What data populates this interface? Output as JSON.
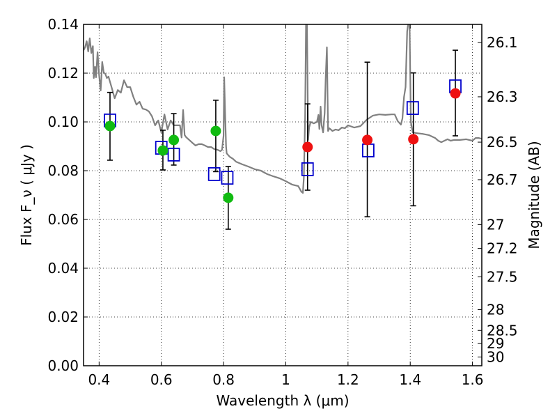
{
  "chart_data": {
    "type": "scatter",
    "xlabel": "Wavelength  λ (μm)",
    "ylabel": "Flux  F_ν  ( μJy )",
    "ylabel_right": "Magnitude (AB)",
    "xlim": [
      0.35,
      1.63
    ],
    "ylim": [
      0.0,
      0.14
    ],
    "grid": true,
    "x_ticks": [
      0.4,
      0.6,
      0.8,
      1.0,
      1.2,
      1.4,
      1.6
    ],
    "x_tick_labels": [
      "0.4",
      "0.6",
      "0.8",
      "1",
      "1.2",
      "1.4",
      "1.6"
    ],
    "y_ticks": [
      0.0,
      0.02,
      0.04,
      0.06,
      0.08,
      0.1,
      0.12,
      0.14
    ],
    "y_tick_labels": [
      "0.00",
      "0.02",
      "0.04",
      "0.06",
      "0.08",
      "0.10",
      "0.12",
      "0.14"
    ],
    "right_axis_ticks": [
      {
        "label": "26.1",
        "flux": 0.1326
      },
      {
        "label": "26.3",
        "flux": 0.1103
      },
      {
        "label": "26.5",
        "flux": 0.0917
      },
      {
        "label": "26.7",
        "flux": 0.0763
      },
      {
        "label": "27",
        "flux": 0.0579
      },
      {
        "label": "27.2",
        "flux": 0.0481
      },
      {
        "label": "27.5",
        "flux": 0.0365
      },
      {
        "label": "28",
        "flux": 0.023
      },
      {
        "label": "28.5",
        "flux": 0.0145
      },
      {
        "label": "29",
        "flux": 0.0091
      },
      {
        "label": "30",
        "flux": 0.0036
      }
    ],
    "series": [
      {
        "kind": "errorbars",
        "color": "#000000",
        "points": [
          {
            "x": 0.435,
            "low": 0.0843,
            "high": 0.1121
          },
          {
            "x": 0.605,
            "low": 0.0803,
            "high": 0.0966
          },
          {
            "x": 0.64,
            "low": 0.0823,
            "high": 0.1034
          },
          {
            "x": 0.775,
            "low": 0.0796,
            "high": 0.1089
          },
          {
            "x": 0.815,
            "low": 0.056,
            "high": 0.0817
          },
          {
            "x": 1.07,
            "low": 0.072,
            "high": 0.1074
          },
          {
            "x": 1.262,
            "low": 0.0611,
            "high": 0.1245
          },
          {
            "x": 1.41,
            "low": 0.0656,
            "high": 0.1201
          },
          {
            "x": 1.545,
            "low": 0.0943,
            "high": 0.1294
          }
        ]
      },
      {
        "kind": "open-squares",
        "color": "#0000cc",
        "points": [
          {
            "x": 0.435,
            "y": 0.1006
          },
          {
            "x": 0.6,
            "y": 0.0894
          },
          {
            "x": 0.64,
            "y": 0.0866
          },
          {
            "x": 0.77,
            "y": 0.0786
          },
          {
            "x": 0.812,
            "y": 0.0771
          },
          {
            "x": 1.07,
            "y": 0.0806
          },
          {
            "x": 1.265,
            "y": 0.0883
          },
          {
            "x": 1.408,
            "y": 0.1057
          },
          {
            "x": 1.545,
            "y": 0.1146
          }
        ]
      },
      {
        "kind": "green-circles",
        "color": "#11bb11",
        "points": [
          {
            "x": 0.435,
            "y": 0.0983
          },
          {
            "x": 0.605,
            "y": 0.0883
          },
          {
            "x": 0.64,
            "y": 0.0926
          },
          {
            "x": 0.775,
            "y": 0.0963
          },
          {
            "x": 0.815,
            "y": 0.0689
          }
        ]
      },
      {
        "kind": "red-circles",
        "color": "#ee1111",
        "points": [
          {
            "x": 1.07,
            "y": 0.0897
          },
          {
            "x": 1.262,
            "y": 0.0926
          },
          {
            "x": 1.41,
            "y": 0.0929
          },
          {
            "x": 1.545,
            "y": 0.1117
          }
        ]
      },
      {
        "kind": "model-spectrum",
        "color": "#808080",
        "points": [
          [
            0.35,
            0.1294
          ],
          [
            0.355,
            0.1306
          ],
          [
            0.36,
            0.1331
          ],
          [
            0.365,
            0.1289
          ],
          [
            0.37,
            0.1343
          ],
          [
            0.375,
            0.1283
          ],
          [
            0.38,
            0.1311
          ],
          [
            0.383,
            0.118
          ],
          [
            0.387,
            0.1226
          ],
          [
            0.39,
            0.1183
          ],
          [
            0.395,
            0.1286
          ],
          [
            0.4,
            0.1194
          ],
          [
            0.405,
            0.1129
          ],
          [
            0.41,
            0.1246
          ],
          [
            0.415,
            0.1203
          ],
          [
            0.42,
            0.1197
          ],
          [
            0.425,
            0.118
          ],
          [
            0.43,
            0.1186
          ],
          [
            0.44,
            0.1143
          ],
          [
            0.45,
            0.1097
          ],
          [
            0.46,
            0.1131
          ],
          [
            0.47,
            0.112
          ],
          [
            0.48,
            0.1171
          ],
          [
            0.49,
            0.1143
          ],
          [
            0.5,
            0.1143
          ],
          [
            0.51,
            0.1103
          ],
          [
            0.52,
            0.1071
          ],
          [
            0.53,
            0.1083
          ],
          [
            0.54,
            0.1054
          ],
          [
            0.55,
            0.1051
          ],
          [
            0.56,
            0.1043
          ],
          [
            0.57,
            0.1023
          ],
          [
            0.58,
            0.0986
          ],
          [
            0.59,
            0.1006
          ],
          [
            0.6,
            0.0957
          ],
          [
            0.61,
            0.1031
          ],
          [
            0.62,
            0.0969
          ],
          [
            0.63,
            0.1006
          ],
          [
            0.64,
            0.0986
          ],
          [
            0.65,
            0.0986
          ],
          [
            0.66,
            0.0986
          ],
          [
            0.665,
            0.0936
          ],
          [
            0.67,
            0.1049
          ],
          [
            0.675,
            0.0946
          ],
          [
            0.68,
            0.0937
          ],
          [
            0.7,
            0.0914
          ],
          [
            0.71,
            0.0903
          ],
          [
            0.72,
            0.0909
          ],
          [
            0.73,
            0.0909
          ],
          [
            0.74,
            0.0903
          ],
          [
            0.75,
            0.0897
          ],
          [
            0.76,
            0.0897
          ],
          [
            0.77,
            0.0889
          ],
          [
            0.78,
            0.0886
          ],
          [
            0.79,
            0.088
          ],
          [
            0.795,
            0.0886
          ],
          [
            0.8,
            0.0943
          ],
          [
            0.802,
            0.1183
          ],
          [
            0.805,
            0.104
          ],
          [
            0.808,
            0.09
          ],
          [
            0.81,
            0.0871
          ],
          [
            0.82,
            0.0857
          ],
          [
            0.83,
            0.0849
          ],
          [
            0.84,
            0.0837
          ],
          [
            0.86,
            0.0826
          ],
          [
            0.88,
            0.0817
          ],
          [
            0.9,
            0.0806
          ],
          [
            0.92,
            0.08
          ],
          [
            0.94,
            0.0786
          ],
          [
            0.96,
            0.0777
          ],
          [
            0.98,
            0.0769
          ],
          [
            1.0,
            0.0757
          ],
          [
            1.02,
            0.0743
          ],
          [
            1.04,
            0.0737
          ],
          [
            1.05,
            0.0714
          ],
          [
            1.055,
            0.0709
          ],
          [
            1.058,
            0.0771
          ],
          [
            1.062,
            0.1014
          ],
          [
            1.065,
            0.14
          ],
          [
            1.068,
            0.14
          ],
          [
            1.072,
            0.0926
          ],
          [
            1.075,
            0.0977
          ],
          [
            1.08,
            0.1
          ],
          [
            1.09,
            0.0994
          ],
          [
            1.1,
            0.1
          ],
          [
            1.105,
            0.1029
          ],
          [
            1.108,
            0.0971
          ],
          [
            1.112,
            0.1063
          ],
          [
            1.115,
            0.0986
          ],
          [
            1.12,
            0.0957
          ],
          [
            1.125,
            0.1037
          ],
          [
            1.128,
            0.1174
          ],
          [
            1.132,
            0.1306
          ],
          [
            1.136,
            0.0963
          ],
          [
            1.14,
            0.0974
          ],
          [
            1.15,
            0.0963
          ],
          [
            1.16,
            0.0969
          ],
          [
            1.17,
            0.0966
          ],
          [
            1.18,
            0.0977
          ],
          [
            1.19,
            0.0974
          ],
          [
            1.2,
            0.0986
          ],
          [
            1.22,
            0.0977
          ],
          [
            1.24,
            0.0983
          ],
          [
            1.26,
            0.1009
          ],
          [
            1.28,
            0.1026
          ],
          [
            1.3,
            0.1031
          ],
          [
            1.32,
            0.1029
          ],
          [
            1.34,
            0.1031
          ],
          [
            1.35,
            0.1031
          ],
          [
            1.36,
            0.1003
          ],
          [
            1.37,
            0.0989
          ],
          [
            1.375,
            0.1014
          ],
          [
            1.38,
            0.1103
          ],
          [
            1.385,
            0.1143
          ],
          [
            1.39,
            0.1371
          ],
          [
            1.393,
            0.14
          ],
          [
            1.398,
            0.14
          ],
          [
            1.402,
            0.1
          ],
          [
            1.408,
            0.0957
          ],
          [
            1.42,
            0.0954
          ],
          [
            1.44,
            0.0951
          ],
          [
            1.46,
            0.0946
          ],
          [
            1.48,
            0.0934
          ],
          [
            1.49,
            0.0923
          ],
          [
            1.5,
            0.0917
          ],
          [
            1.52,
            0.0929
          ],
          [
            1.53,
            0.0923
          ],
          [
            1.54,
            0.0926
          ],
          [
            1.56,
            0.0926
          ],
          [
            1.58,
            0.0929
          ],
          [
            1.6,
            0.0923
          ],
          [
            1.61,
            0.0934
          ],
          [
            1.62,
            0.0934
          ],
          [
            1.63,
            0.0931
          ]
        ]
      }
    ]
  }
}
